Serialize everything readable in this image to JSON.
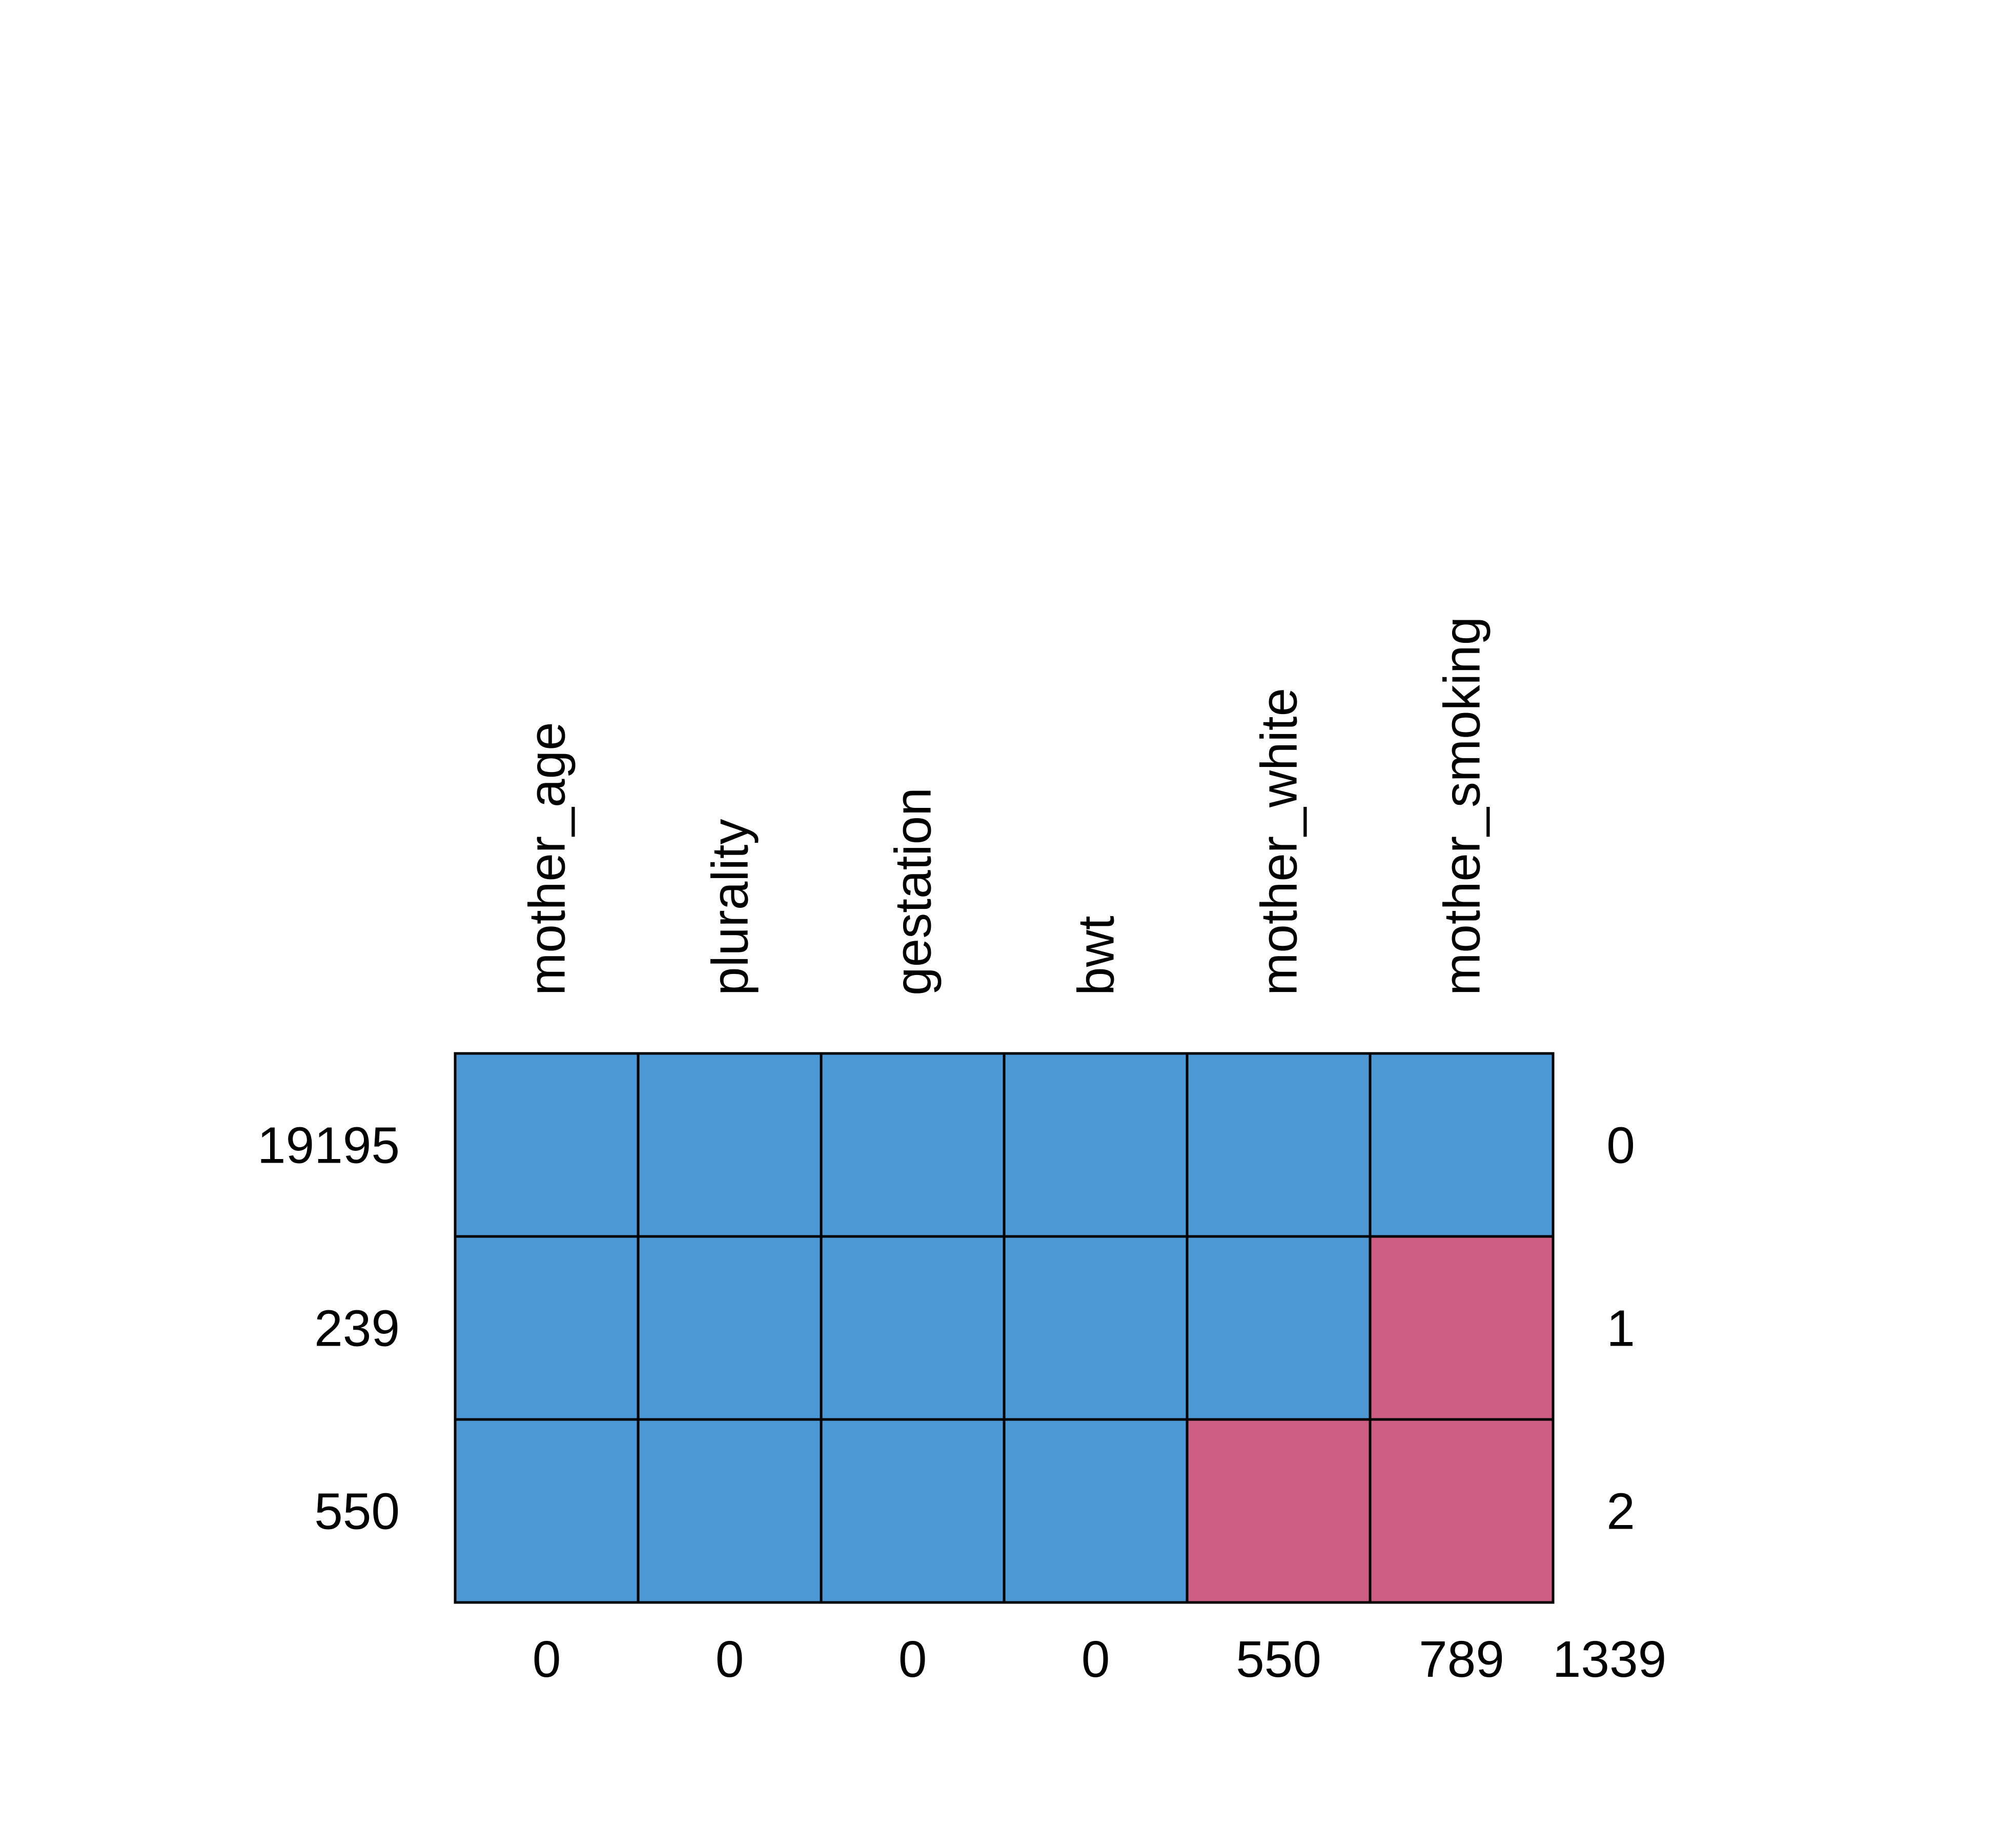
{
  "chart_data": {
    "type": "heatmap",
    "title": "",
    "xlabel": "",
    "ylabel": "",
    "columns": [
      "mother_age",
      "plurality",
      "gestation",
      "bwt",
      "mother_white",
      "mother_smoking"
    ],
    "rows": [
      {
        "count": "19195",
        "missing_in_pattern": "0",
        "cells": [
          1,
          1,
          1,
          1,
          1,
          1
        ]
      },
      {
        "count": "239",
        "missing_in_pattern": "1",
        "cells": [
          1,
          1,
          1,
          1,
          1,
          0
        ]
      },
      {
        "count": "550",
        "missing_in_pattern": "2",
        "cells": [
          1,
          1,
          1,
          1,
          0,
          0
        ]
      }
    ],
    "column_missing_totals": [
      "0",
      "0",
      "0",
      "0",
      "550",
      "789"
    ],
    "grand_total_missing": "1339",
    "legend": "none",
    "grid": true,
    "colors": {
      "observed": "#4c98d4",
      "missing": "#cc5e83",
      "border": "#000000"
    }
  }
}
